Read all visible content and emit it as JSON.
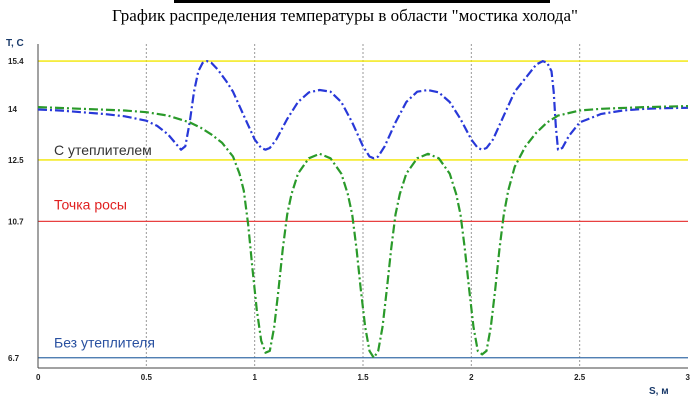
{
  "chart_data": {
    "type": "line",
    "title": "График распределения температуры в области \"мостика холода\"",
    "xlabel": "S, м",
    "ylabel": "T, C",
    "xlim": [
      0,
      3
    ],
    "ylim": [
      6.4,
      15.9
    ],
    "x_ticks": [
      {
        "value": 0,
        "label": "0"
      },
      {
        "value": 0.5,
        "label": "0.5"
      },
      {
        "value": 1,
        "label": "1"
      },
      {
        "value": 1.5,
        "label": "1.5"
      },
      {
        "value": 2,
        "label": "2"
      },
      {
        "value": 2.5,
        "label": "2.5"
      },
      {
        "value": 3,
        "label": "3"
      }
    ],
    "y_ticks": [
      {
        "value": 6.7,
        "label": "6.7"
      },
      {
        "value": 10.7,
        "label": "10.7"
      },
      {
        "value": 12.5,
        "label": "12.5"
      },
      {
        "value": 14,
        "label": "14"
      },
      {
        "value": 15.4,
        "label": "15.4"
      }
    ],
    "grid": true,
    "reference_lines": [
      {
        "value": 15.4,
        "color": "#f2e600"
      },
      {
        "value": 12.5,
        "color": "#f2e600"
      },
      {
        "value": 10.7,
        "color": "#e84040"
      },
      {
        "value": 6.7,
        "color": "#3a6ea8"
      }
    ],
    "annotations": [
      {
        "text": "С утеплителем",
        "x": 0.0,
        "y": 12.65,
        "color": "#333333"
      },
      {
        "text": "Точка росы",
        "x": 0.0,
        "y": 11.05,
        "color": "#e02020"
      },
      {
        "text": "Без утеплителя",
        "x": 0.0,
        "y": 7.0,
        "color": "#2850a0"
      }
    ],
    "series": [
      {
        "color": "#2838d8",
        "x": [
          0,
          0.1,
          0.2,
          0.3,
          0.4,
          0.5,
          0.55,
          0.6,
          0.64,
          0.66,
          0.68,
          0.7,
          0.72,
          0.74,
          0.76,
          0.78,
          0.8,
          0.83,
          0.87,
          0.9,
          0.95,
          1.0,
          1.03,
          1.05,
          1.07,
          1.1,
          1.15,
          1.2,
          1.25,
          1.3,
          1.35,
          1.4,
          1.45,
          1.5,
          1.53,
          1.55,
          1.57,
          1.6,
          1.65,
          1.7,
          1.75,
          1.8,
          1.85,
          1.9,
          1.95,
          2.0,
          2.03,
          2.05,
          2.07,
          2.1,
          2.15,
          2.2,
          2.25,
          2.3,
          2.33,
          2.35,
          2.37,
          2.38,
          2.39,
          2.4,
          2.42,
          2.45,
          2.5,
          2.6,
          2.7,
          2.8,
          2.9,
          3.0
        ],
        "values": [
          13.98,
          13.95,
          13.9,
          13.85,
          13.78,
          13.65,
          13.5,
          13.25,
          12.95,
          12.8,
          12.9,
          13.6,
          14.5,
          15.1,
          15.35,
          15.4,
          15.35,
          15.15,
          14.8,
          14.5,
          13.8,
          13.1,
          12.85,
          12.8,
          12.85,
          13.1,
          13.7,
          14.2,
          14.48,
          14.55,
          14.5,
          14.2,
          13.6,
          12.9,
          12.6,
          12.55,
          12.6,
          12.9,
          13.6,
          14.2,
          14.5,
          14.55,
          14.48,
          14.2,
          13.7,
          13.1,
          12.85,
          12.8,
          12.85,
          13.1,
          13.8,
          14.5,
          14.9,
          15.3,
          15.4,
          15.35,
          15.1,
          14.5,
          13.5,
          12.8,
          12.85,
          13.2,
          13.6,
          13.85,
          13.95,
          14.0,
          14.02,
          14.03
        ]
      },
      {
        "color": "#2a9a2a",
        "x": [
          0,
          0.2,
          0.4,
          0.5,
          0.6,
          0.7,
          0.75,
          0.8,
          0.85,
          0.9,
          0.93,
          0.95,
          0.97,
          0.99,
          1.01,
          1.03,
          1.05,
          1.07,
          1.09,
          1.11,
          1.13,
          1.15,
          1.17,
          1.2,
          1.25,
          1.3,
          1.35,
          1.4,
          1.43,
          1.45,
          1.47,
          1.49,
          1.51,
          1.53,
          1.55,
          1.57,
          1.59,
          1.61,
          1.63,
          1.65,
          1.67,
          1.7,
          1.75,
          1.8,
          1.85,
          1.9,
          1.93,
          1.95,
          1.97,
          1.99,
          2.01,
          2.03,
          2.05,
          2.07,
          2.09,
          2.11,
          2.13,
          2.15,
          2.17,
          2.2,
          2.25,
          2.3,
          2.35,
          2.4,
          2.5,
          2.6,
          2.8,
          3.0
        ],
        "values": [
          14.05,
          14.0,
          13.95,
          13.9,
          13.8,
          13.6,
          13.45,
          13.25,
          13.0,
          12.6,
          12.1,
          11.6,
          10.6,
          9.3,
          8.1,
          7.2,
          6.85,
          6.9,
          7.6,
          8.7,
          9.9,
          10.9,
          11.5,
          12.1,
          12.55,
          12.68,
          12.55,
          12.1,
          11.5,
          10.9,
          9.9,
          8.7,
          7.6,
          6.9,
          6.7,
          6.9,
          7.6,
          8.7,
          9.9,
          10.9,
          11.5,
          12.1,
          12.55,
          12.68,
          12.55,
          12.1,
          11.5,
          10.9,
          9.9,
          8.7,
          7.6,
          6.9,
          6.8,
          6.9,
          7.6,
          8.7,
          9.9,
          10.9,
          11.6,
          12.3,
          12.9,
          13.3,
          13.6,
          13.8,
          13.95,
          14.0,
          14.05,
          14.08
        ]
      }
    ]
  }
}
